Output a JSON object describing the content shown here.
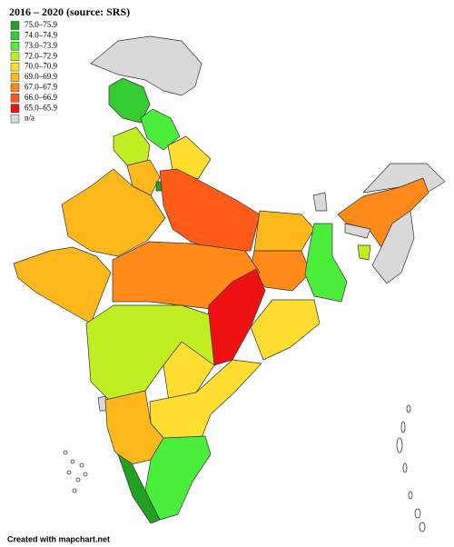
{
  "legend": {
    "title": "2016 – 2020 (source: SRS)",
    "items": [
      {
        "label": "75.0–75.9",
        "color": "#21a121"
      },
      {
        "label": "74.0–74.9",
        "color": "#33cc33"
      },
      {
        "label": "73.0–73.9",
        "color": "#4cee3c"
      },
      {
        "label": "72.0–72.9",
        "color": "#c0ee22"
      },
      {
        "label": "70.0–70.9",
        "color": "#ffde30"
      },
      {
        "label": "69.0–69.9",
        "color": "#ffb81c"
      },
      {
        "label": "67.0–67.9",
        "color": "#ff8a1a"
      },
      {
        "label": "66.0–66.9",
        "color": "#ff5a18"
      },
      {
        "label": "65.0–65.9",
        "color": "#ee1111"
      },
      {
        "label": "n/a",
        "color": "#d9d9d9"
      }
    ]
  },
  "footer": "Created with mapchart.net"
}
